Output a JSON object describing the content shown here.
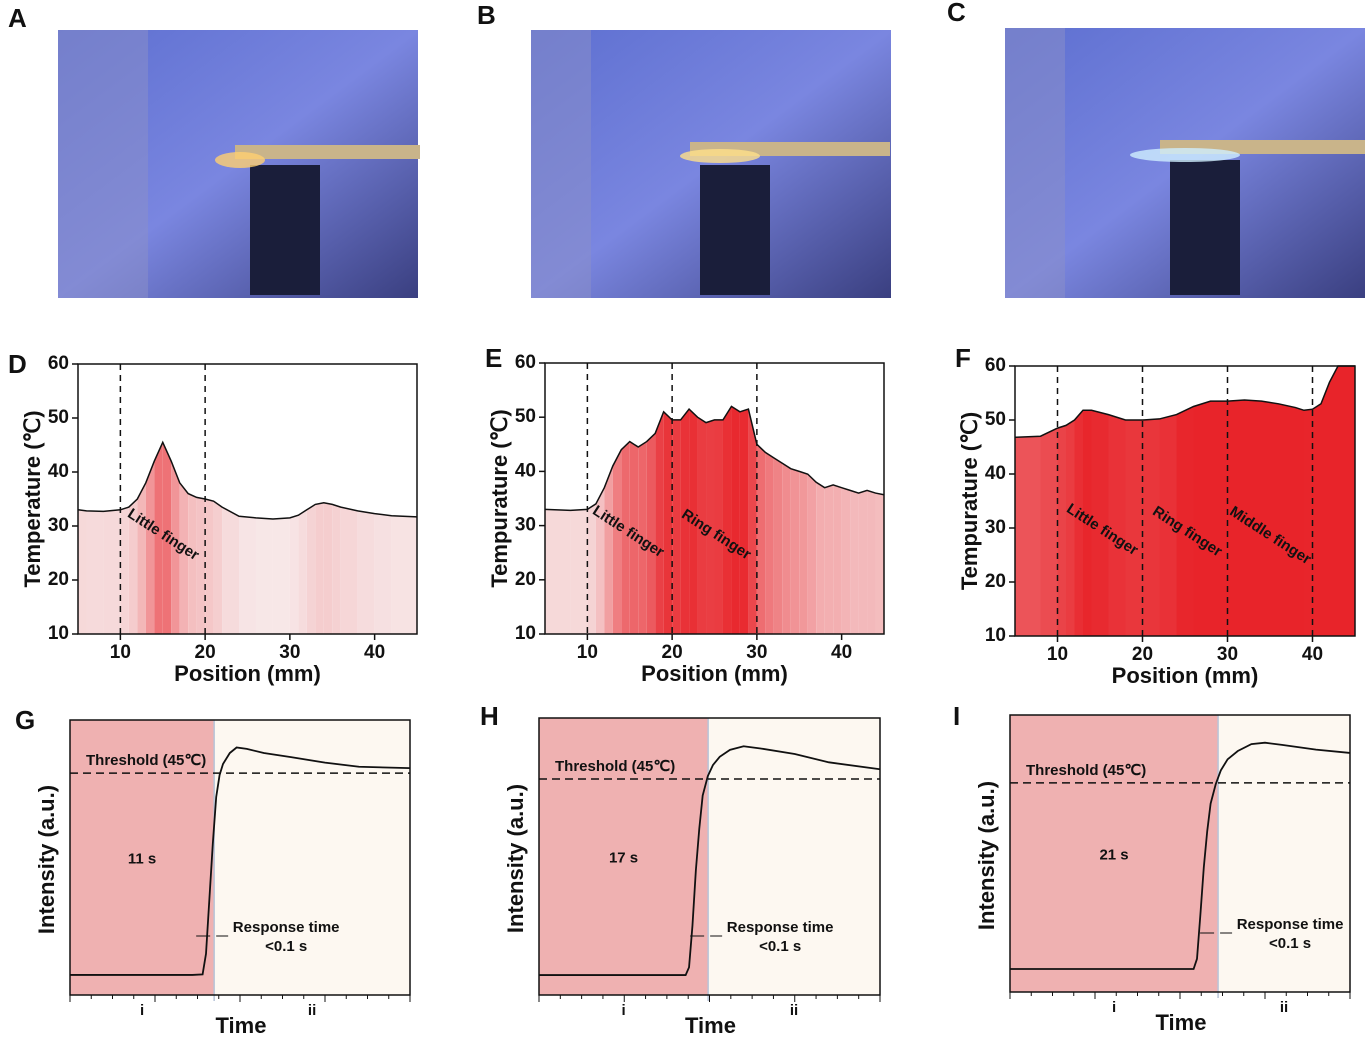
{
  "images": [
    {
      "label": "A"
    },
    {
      "label": "B"
    },
    {
      "label": "C"
    }
  ],
  "chart_data": [
    {
      "type": "area",
      "label": "D",
      "xlabel": "Position (mm)",
      "ylabel": "Temperature (℃)",
      "xlim": [
        5,
        45
      ],
      "xticks": [
        10,
        20,
        30,
        40
      ],
      "ylim": [
        10,
        60
      ],
      "yticks": [
        10,
        20,
        30,
        40,
        50,
        60
      ],
      "dividers": [
        10,
        20
      ],
      "annotations": [
        "Little finger"
      ],
      "color": "#111111",
      "x": [
        5,
        6,
        8,
        10,
        11,
        12,
        13,
        14,
        15,
        16,
        17,
        18,
        19,
        20,
        21,
        22,
        24,
        26,
        28,
        30,
        31,
        32,
        33,
        34,
        35,
        36,
        38,
        40,
        42,
        45
      ],
      "values": [
        33,
        32.8,
        32.7,
        33,
        33.5,
        35,
        38,
        42,
        45.5,
        42,
        38,
        36,
        35.3,
        35,
        34.6,
        33.5,
        31.8,
        31.5,
        31.3,
        31.5,
        32,
        33,
        34,
        34.3,
        34,
        33.5,
        32.8,
        32.3,
        31.9,
        31.7
      ]
    },
    {
      "type": "area",
      "label": "E",
      "xlabel": "Position (mm)",
      "ylabel": "Tempurature (℃)",
      "xlim": [
        5,
        45
      ],
      "xticks": [
        10,
        20,
        30,
        40
      ],
      "ylim": [
        10,
        60
      ],
      "yticks": [
        10,
        20,
        30,
        40,
        50,
        60
      ],
      "dividers": [
        10,
        20,
        30
      ],
      "annotations": [
        "Little finger",
        "Ring finger"
      ],
      "color": "#111111",
      "x": [
        5,
        8,
        10,
        11,
        12,
        13,
        14,
        15,
        16,
        17,
        18,
        19,
        20,
        21,
        22,
        23,
        24,
        25,
        26,
        27,
        28,
        29,
        30,
        31,
        32,
        33,
        34,
        35,
        36,
        37,
        38,
        39,
        40,
        41,
        42,
        43,
        44,
        45
      ],
      "values": [
        33,
        32.8,
        33,
        34,
        37,
        41,
        44,
        45.5,
        44.5,
        45.5,
        47,
        51,
        49.5,
        49.5,
        51.5,
        50,
        49,
        49.5,
        49.5,
        52,
        51,
        51.5,
        45,
        43.5,
        42.5,
        41.5,
        40.5,
        40,
        39.5,
        38,
        37,
        37.5,
        37,
        36.5,
        36,
        36.5,
        36,
        35.7
      ]
    },
    {
      "type": "area",
      "label": "F",
      "xlabel": "Position (mm)",
      "ylabel": "Tempurature (℃)",
      "xlim": [
        5,
        45
      ],
      "xticks": [
        10,
        20,
        30,
        40
      ],
      "ylim": [
        10,
        60
      ],
      "yticks": [
        10,
        20,
        30,
        40,
        50,
        60
      ],
      "dividers": [
        10,
        20,
        30,
        40
      ],
      "annotations": [
        "Little finger",
        "Ring finger",
        "Middle finger"
      ],
      "color": "#111111",
      "x": [
        5,
        8,
        10,
        11,
        12,
        13,
        14,
        16,
        18,
        20,
        22,
        24,
        26,
        28,
        30,
        32,
        34,
        36,
        38,
        39,
        40,
        41,
        42,
        43,
        44,
        45
      ],
      "values": [
        46.8,
        47,
        48.5,
        49,
        50,
        51.8,
        51.8,
        51,
        50,
        50,
        50.2,
        51,
        52.5,
        53.5,
        53.5,
        53.7,
        53.5,
        53,
        52.3,
        51.8,
        52,
        53,
        57,
        60,
        60,
        60
      ]
    },
    {
      "type": "line",
      "label": "G",
      "xlabel": "Time",
      "ylabel": "Intensity (a.u.)",
      "xlim": [
        0,
        100
      ],
      "ylim": [
        0,
        100
      ],
      "split": 42.4,
      "categories": [
        "i",
        "ii"
      ],
      "threshold": {
        "value": 80.7,
        "label": "Threshold (45℃)"
      },
      "duration_label": "11 s",
      "response_label": [
        "Response time",
        "<0.1 s"
      ],
      "color": "#111111",
      "x": [
        0,
        36,
        39,
        40,
        41,
        42,
        43,
        44,
        45,
        47,
        49,
        52,
        57,
        65,
        75,
        85,
        100
      ],
      "values": [
        7.3,
        7.3,
        7.5,
        15,
        35,
        55,
        72,
        80,
        84,
        88,
        90,
        89.5,
        88,
        86.5,
        84.5,
        83,
        82.5
      ]
    },
    {
      "type": "line",
      "label": "H",
      "xlabel": "Time",
      "ylabel": "Intensity (a.u.)",
      "xlim": [
        0,
        100
      ],
      "ylim": [
        0,
        100
      ],
      "split": 49.6,
      "categories": [
        "i",
        "ii"
      ],
      "threshold": {
        "value": 78,
        "label": "Threshold (45℃)"
      },
      "duration_label": "17 s",
      "response_label": [
        "Response time",
        "<0.1 s"
      ],
      "color": "#111111",
      "x": [
        0,
        43,
        44,
        45,
        46,
        47,
        48,
        49.5,
        51,
        53,
        56,
        60,
        65,
        75,
        85,
        100
      ],
      "values": [
        7.2,
        7.2,
        10,
        25,
        45,
        60,
        72,
        79,
        83,
        86,
        88.5,
        89.8,
        89,
        87,
        84,
        81.5
      ]
    },
    {
      "type": "line",
      "label": "I",
      "xlabel": "Time",
      "ylabel": "Intensity (a.u.)",
      "xlim": [
        0,
        100
      ],
      "ylim": [
        0,
        100
      ],
      "split": 61.2,
      "categories": [
        "i",
        "ii"
      ],
      "threshold": {
        "value": 75.5,
        "label": "Threshold (45℃)"
      },
      "duration_label": "21 s",
      "response_label": [
        "Response time",
        "<0.1 s"
      ],
      "color": "#111111",
      "x": [
        0,
        54,
        55,
        56,
        57,
        58,
        59,
        60.5,
        62,
        64,
        67,
        71,
        75,
        80,
        90,
        100
      ],
      "values": [
        8.3,
        8.3,
        12,
        28,
        45,
        58,
        68,
        75,
        80,
        84,
        87,
        89.5,
        90,
        89.2,
        87.5,
        86.3
      ]
    }
  ]
}
